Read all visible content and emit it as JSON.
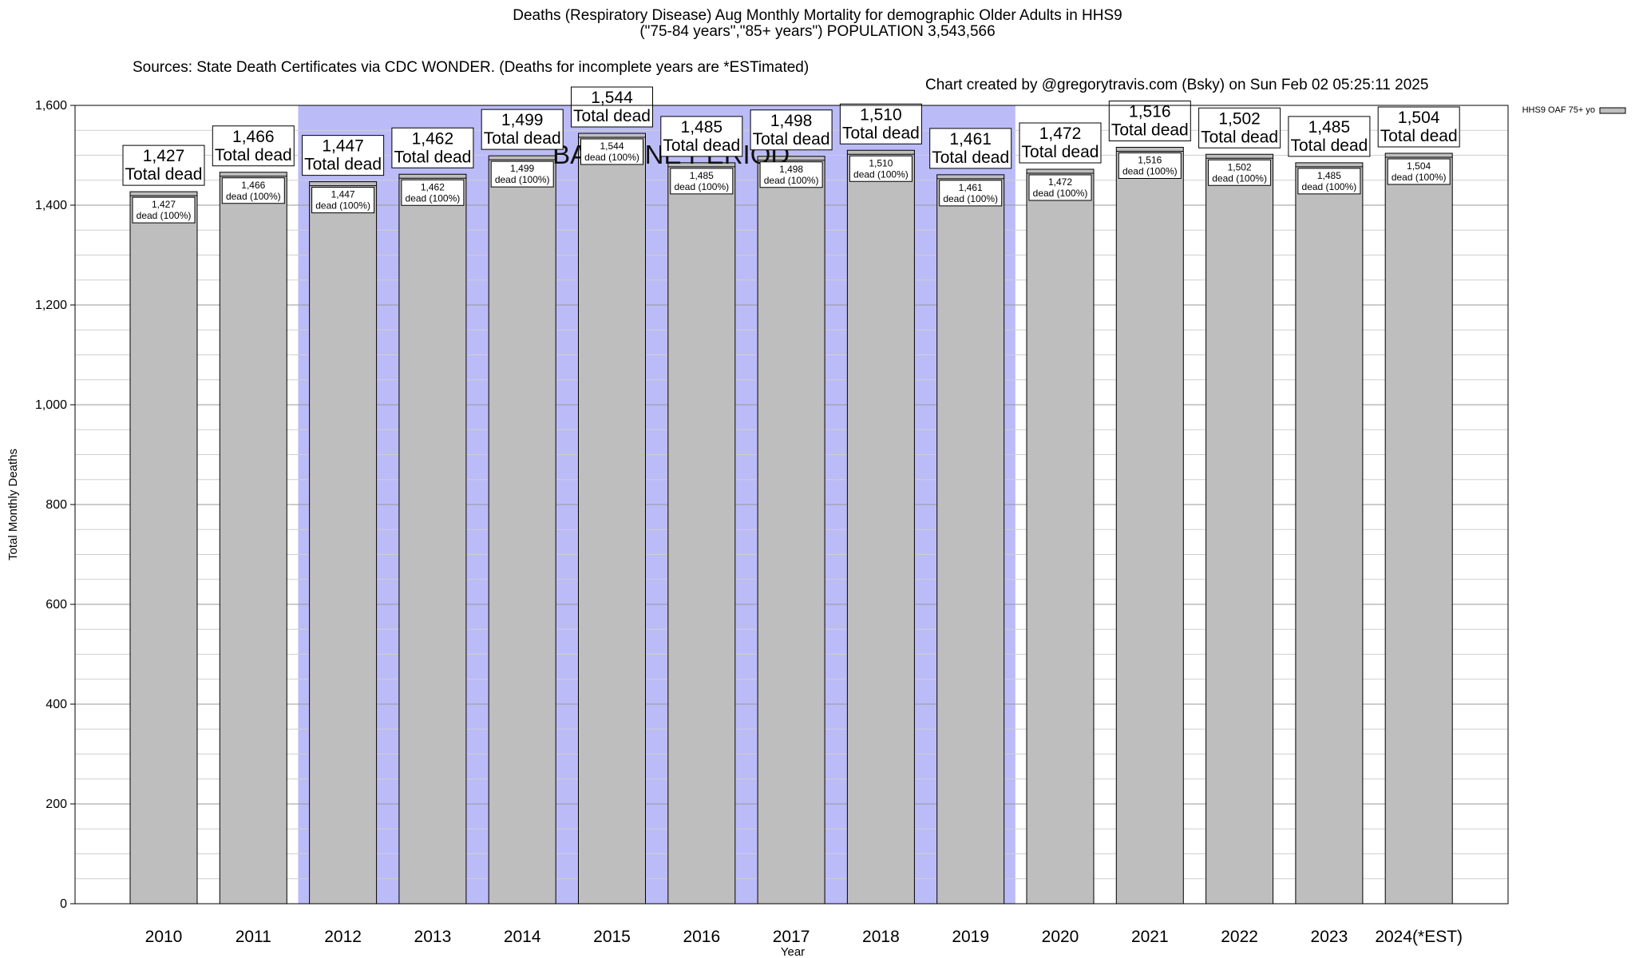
{
  "chart_data": {
    "type": "bar",
    "title": "Deaths (Respiratory Disease) Aug Monthly Mortality for demographic Older Adults in HHS9",
    "subtitle": "(\"75-84 years\",\"85+ years\") POPULATION 3,543,566",
    "sources": "Sources: State Death Certificates via CDC WONDER. (Deaths for incomplete years are *ESTimated)",
    "credit": "Chart created by @gregorytravis.com (Bsky) on Sun Feb 02 05:25:11 2025",
    "xlabel": "Year",
    "ylabel": "Total Monthly Deaths",
    "ylim": [
      0,
      1600
    ],
    "y_ticks": [
      0,
      200,
      400,
      600,
      800,
      1000,
      1200,
      1400,
      1600
    ],
    "y_tick_labels": [
      "0",
      "200",
      "400",
      "600",
      "800",
      "1,000",
      "1,200",
      "1,400",
      "1,600"
    ],
    "categories": [
      "2010",
      "2011",
      "2012",
      "2013",
      "2014",
      "2015",
      "2016",
      "2017",
      "2018",
      "2019",
      "2020",
      "2021",
      "2022",
      "2023",
      "2024(*EST)"
    ],
    "series": [
      {
        "name": "HHS9 OAF 75+ yo",
        "values": [
          1427,
          1466,
          1447,
          1462,
          1499,
          1544,
          1485,
          1498,
          1510,
          1461,
          1472,
          1516,
          1502,
          1485,
          1504
        ],
        "value_labels": [
          "1,427",
          "1,466",
          "1,447",
          "1,462",
          "1,499",
          "1,544",
          "1,485",
          "1,498",
          "1,510",
          "1,461",
          "1,472",
          "1,516",
          "1,502",
          "1,485",
          "1,504"
        ],
        "color": "#bebebe"
      }
    ],
    "total_label_suffix": "Total dead",
    "inner_label_suffix": "dead (100%)",
    "baseline_period": {
      "label": "BASELINE PERIOD",
      "start": "2012",
      "end": "2019",
      "color": "#bbbbf8"
    },
    "grid": true,
    "legend_position": "top-right"
  }
}
